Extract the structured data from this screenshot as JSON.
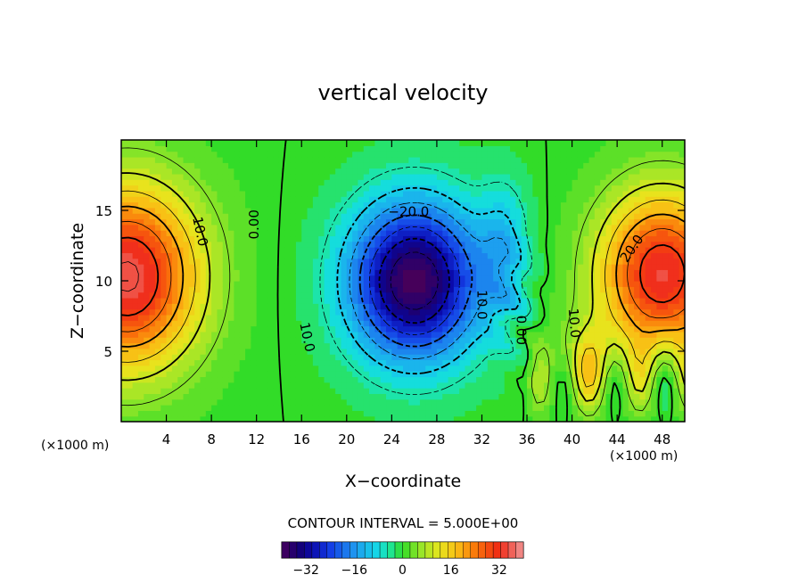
{
  "chart_data": {
    "type": "heatmap",
    "title": "vertical velocity",
    "xlabel": "X−coordinate",
    "ylabel": "Z−coordinate",
    "x_unit_label": "(×1000 m)",
    "x_unit_label_right": "(×1000 m)",
    "xlim": [
      0,
      50
    ],
    "ylim": [
      0,
      20
    ],
    "x_ticks": [
      4,
      8,
      12,
      16,
      20,
      24,
      28,
      32,
      36,
      40,
      44,
      48
    ],
    "y_ticks": [
      5,
      10,
      15
    ],
    "contour_interval_text": "CONTOUR INTERVAL = 5.000E+00",
    "contour_interval": 5.0,
    "value_range": [
      -40,
      40
    ],
    "colorbar_ticks": [
      -32,
      -16,
      0,
      16,
      32
    ],
    "colorbar_tick_labels": [
      "−32",
      "−16",
      "0",
      "16",
      "32"
    ],
    "contour_labels": [
      {
        "text": "10.0",
        "x": 7,
        "z": 13.5,
        "rotate": 78
      },
      {
        "text": "0.00",
        "x": 11.8,
        "z": 14.0,
        "rotate": -90
      },
      {
        "text": "−20.0",
        "x": 25.5,
        "z": 14.9,
        "rotate": 0
      },
      {
        "text": "10.0",
        "x": 16.5,
        "z": 6.0,
        "rotate": 78
      },
      {
        "text": "10.0",
        "x": 32.0,
        "z": 8.3,
        "rotate": 90
      },
      {
        "text": "0.00",
        "x": 35.5,
        "z": 6.5,
        "rotate": 90
      },
      {
        "text": "10.0",
        "x": 40.2,
        "z": 7.0,
        "rotate": 85
      },
      {
        "text": "20.0",
        "x": 45.3,
        "z": 12.3,
        "rotate": -55
      }
    ],
    "features": [
      {
        "sign": "positive",
        "x": 0,
        "z": 10.3,
        "peak": 34
      },
      {
        "sign": "negative",
        "x": 26,
        "z": 10,
        "peak": -39
      },
      {
        "sign": "positive",
        "x": 48,
        "z": 10.5,
        "peak": 34
      }
    ]
  }
}
